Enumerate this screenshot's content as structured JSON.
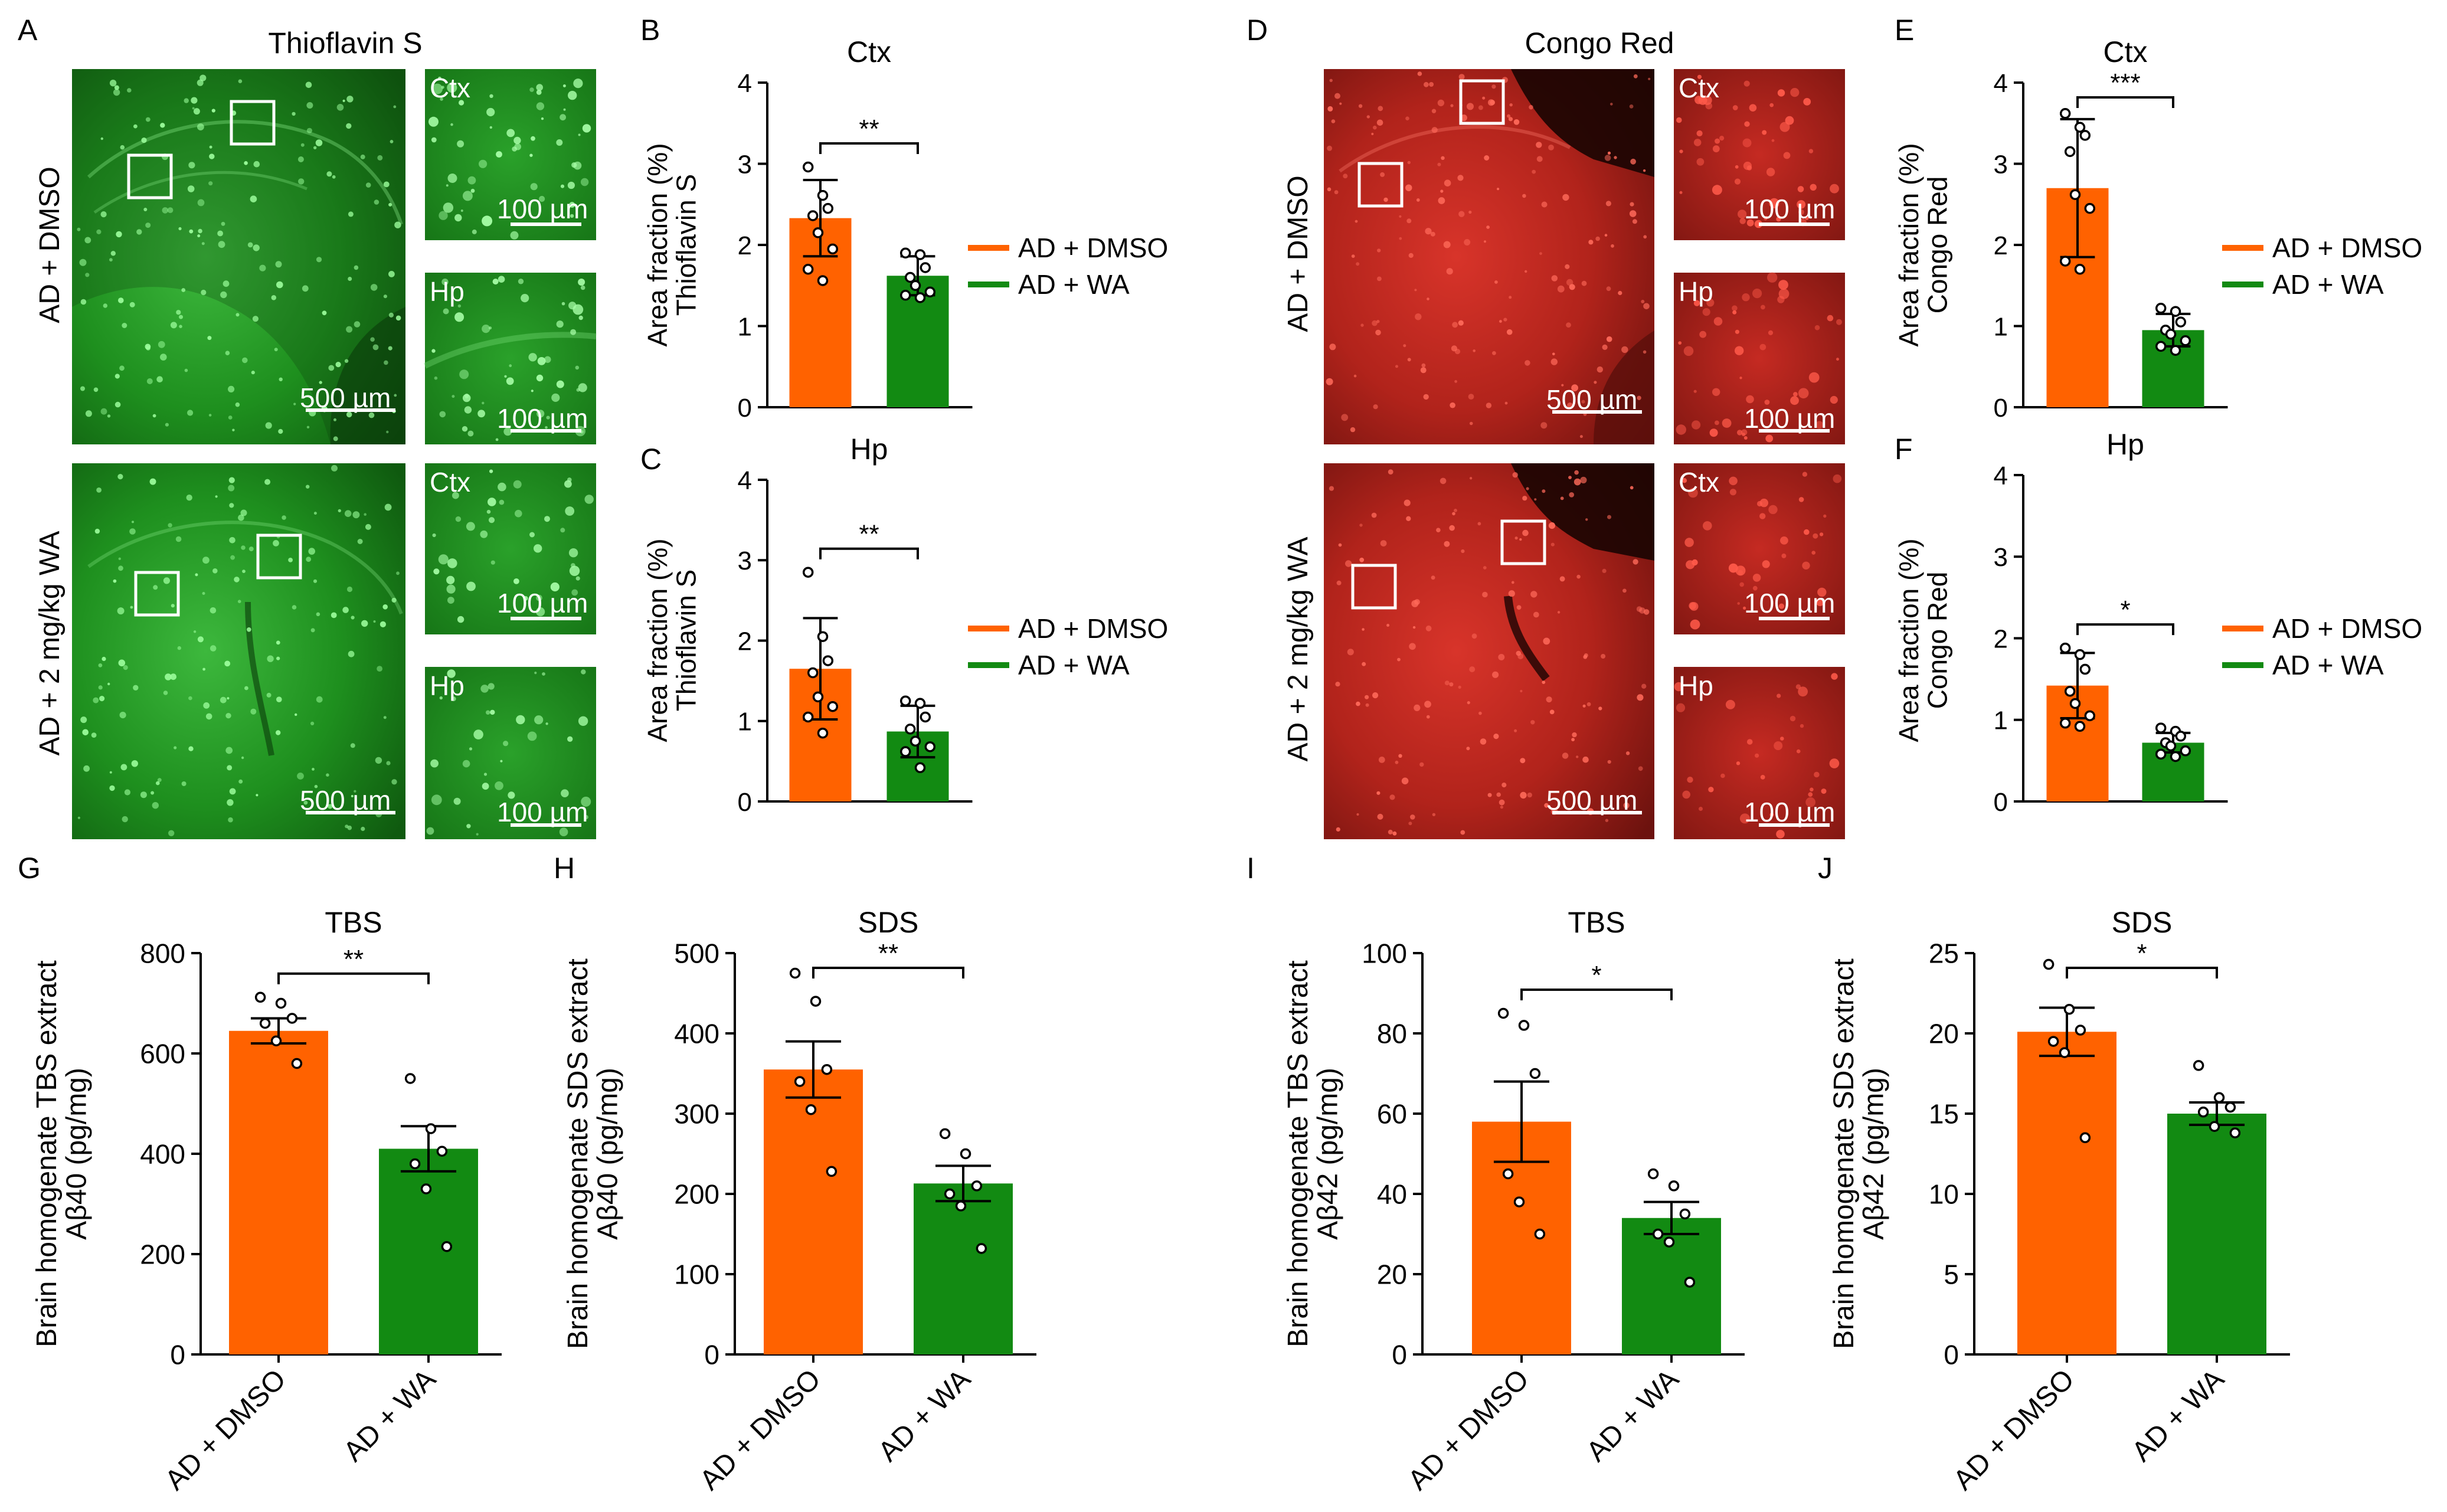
{
  "colors": {
    "dmso": "#ff6200",
    "wa": "#128a12",
    "axis": "#000000",
    "micro_green_dark": "#0b3f0b",
    "micro_green_mid": "#1f8a1f",
    "micro_green_spot": "#6dff6d",
    "micro_red_dark": "#3a0a08",
    "micro_red_mid": "#b3231a",
    "micro_red_spot": "#ff5a4a"
  },
  "legend": {
    "dmso": "AD + DMSO",
    "wa": "AD + WA"
  },
  "significance": {
    "two": "**",
    "three": "***",
    "one": "*"
  },
  "panel_a": {
    "letter": "A",
    "title": "Thioflavin S",
    "row_labels": [
      "AD + DMSO",
      "AD + 2 mg/kg WA"
    ],
    "region_labels": {
      "ctx": "Ctx",
      "hp": "Hp"
    },
    "scale_large": "500 µm",
    "scale_small": "100 µm"
  },
  "panel_d": {
    "letter": "D",
    "title": "Congo Red",
    "row_labels": [
      "AD + DMSO",
      "AD + 2 mg/kg WA"
    ],
    "region_labels": {
      "ctx": "Ctx",
      "hp": "Hp"
    },
    "scale_large": "500 µm",
    "scale_small": "100 µm"
  },
  "chart_data": [
    {
      "id": "B",
      "type": "bar",
      "title": "Ctx",
      "ylabel": [
        "Area fraction (%)",
        "Thioflavin S"
      ],
      "categories": [
        "AD + DMSO",
        "AD + WA"
      ],
      "values": [
        2.33,
        1.62
      ],
      "errors": [
        0.47,
        0.24
      ],
      "ylim": [
        0,
        4
      ],
      "ticks": [
        0,
        1,
        2,
        3,
        4
      ],
      "significance": "**",
      "points": [
        [
          2.96,
          2.61,
          2.45,
          2.36,
          2.15,
          1.95,
          1.7,
          1.56
        ],
        [
          1.9,
          1.88,
          1.72,
          1.6,
          1.5,
          1.42,
          1.38,
          1.35
        ]
      ]
    },
    {
      "id": "C",
      "type": "bar",
      "title": "Hp",
      "ylabel": [
        "Area fraction (%)",
        "Thioflavin S"
      ],
      "categories": [
        "AD + DMSO",
        "AD + WA"
      ],
      "values": [
        1.65,
        0.87
      ],
      "errors": [
        0.63,
        0.32
      ],
      "ylim": [
        0,
        4
      ],
      "ticks": [
        0,
        1,
        2,
        3,
        4
      ],
      "significance": "**",
      "points": [
        [
          2.85,
          2.05,
          1.75,
          1.6,
          1.3,
          1.18,
          1.05,
          0.85
        ],
        [
          1.25,
          1.22,
          1.05,
          0.9,
          0.75,
          0.68,
          0.62,
          0.42
        ]
      ]
    },
    {
      "id": "E",
      "type": "bar",
      "title": "Ctx",
      "ylabel": [
        "Area fraction (%)",
        "Congo Red"
      ],
      "categories": [
        "AD + DMSO",
        "AD + WA"
      ],
      "values": [
        2.7,
        0.95
      ],
      "errors": [
        0.85,
        0.2
      ],
      "ylim": [
        0,
        4
      ],
      "ticks": [
        0,
        1,
        2,
        3,
        4
      ],
      "significance": "***",
      "points": [
        [
          3.62,
          3.45,
          3.35,
          3.15,
          2.62,
          2.45,
          1.8,
          1.7
        ],
        [
          1.22,
          1.18,
          1.05,
          0.95,
          0.9,
          0.82,
          0.75,
          0.7
        ]
      ]
    },
    {
      "id": "F",
      "type": "bar",
      "title": "Hp",
      "ylabel": [
        "Area fraction (%)",
        "Congo Red"
      ],
      "categories": [
        "AD + DMSO",
        "AD + WA"
      ],
      "values": [
        1.42,
        0.72
      ],
      "errors": [
        0.4,
        0.12
      ],
      "ylim": [
        0,
        4
      ],
      "ticks": [
        0,
        1,
        2,
        3,
        4
      ],
      "significance": "*",
      "points": [
        [
          1.88,
          1.8,
          1.62,
          1.35,
          1.2,
          1.05,
          0.96,
          0.92
        ],
        [
          0.9,
          0.86,
          0.8,
          0.72,
          0.68,
          0.62,
          0.58,
          0.55
        ]
      ]
    },
    {
      "id": "G",
      "type": "bar",
      "title": "TBS",
      "ylabel": [
        "Brain homogenate TBS extract",
        "Aβ40 (pg/mg)"
      ],
      "categories": [
        "AD + DMSO",
        "AD + WA"
      ],
      "values": [
        645,
        410
      ],
      "errors": [
        25,
        45
      ],
      "ylim": [
        0,
        800
      ],
      "ticks": [
        0,
        200,
        400,
        600,
        800
      ],
      "significance": "**",
      "points": [
        [
          712,
          700,
          670,
          660,
          625,
          580
        ],
        [
          550,
          450,
          405,
          380,
          330,
          215
        ]
      ]
    },
    {
      "id": "H",
      "type": "bar",
      "title": "SDS",
      "ylabel": [
        "Brain homogenate SDS extract",
        "Aβ40 (pg/mg)"
      ],
      "categories": [
        "AD + DMSO",
        "AD + WA"
      ],
      "values": [
        355,
        213
      ],
      "errors": [
        35,
        22
      ],
      "ylim": [
        0,
        500
      ],
      "ticks": [
        0,
        100,
        200,
        300,
        400,
        500
      ],
      "significance": "**",
      "points": [
        [
          475,
          440,
          355,
          340,
          305,
          228
        ],
        [
          275,
          250,
          210,
          200,
          185,
          132
        ]
      ]
    },
    {
      "id": "I",
      "type": "bar",
      "title": "TBS",
      "ylabel": [
        "Brain homogenate TBS extract",
        "Aβ42 (pg/mg)"
      ],
      "categories": [
        "AD + DMSO",
        "AD + WA"
      ],
      "values": [
        58,
        34
      ],
      "errors": [
        10,
        4
      ],
      "ylim": [
        0,
        100
      ],
      "ticks": [
        0,
        20,
        40,
        60,
        80,
        100
      ],
      "significance": "*",
      "points": [
        [
          85,
          82,
          70,
          45,
          38,
          30
        ],
        [
          45,
          42,
          35,
          30,
          28,
          18
        ]
      ]
    },
    {
      "id": "J",
      "type": "bar",
      "title": "SDS",
      "ylabel": [
        "Brain homogenate SDS extract",
        "Aβ42 (pg/mg)"
      ],
      "categories": [
        "AD + DMSO",
        "AD + WA"
      ],
      "values": [
        20.1,
        15
      ],
      "errors": [
        1.5,
        0.7
      ],
      "ylim": [
        0,
        25
      ],
      "ticks": [
        0,
        5,
        10,
        15,
        20,
        25
      ],
      "significance": "*",
      "points": [
        [
          24.3,
          21.5,
          20.2,
          19.5,
          18.8,
          13.5
        ],
        [
          18,
          16,
          15.4,
          15.1,
          14.2,
          13.8
        ]
      ]
    }
  ]
}
